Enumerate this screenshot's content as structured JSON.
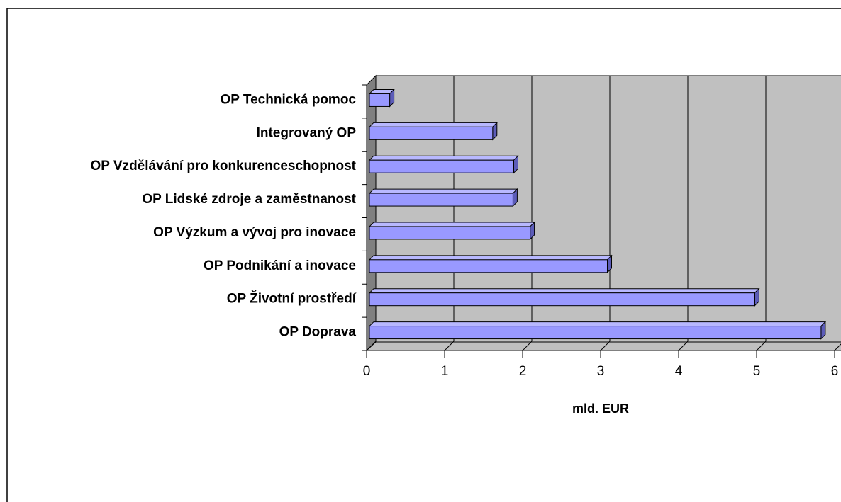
{
  "chart_data": {
    "type": "bar3d_horizontal",
    "categories": [
      "OP Doprava",
      "OP Životní prostředí",
      "OP Podnikání a inovace",
      "OP Výzkum a vývoj pro inovace",
      "OP Lidské zdroje a zaměstnanost",
      "OP Vzdělávání pro konkurenceschopnost",
      "Integrovaný OP",
      "OP Technická pomoc"
    ],
    "values": [
      5.79,
      4.94,
      3.05,
      2.06,
      1.84,
      1.85,
      1.58,
      0.26
    ],
    "color": "#9999ff",
    "x_label": "mld. EUR",
    "xlim": [
      0,
      6
    ],
    "xticks": [
      0,
      1,
      2,
      3,
      4,
      5,
      6
    ],
    "grid": true
  }
}
